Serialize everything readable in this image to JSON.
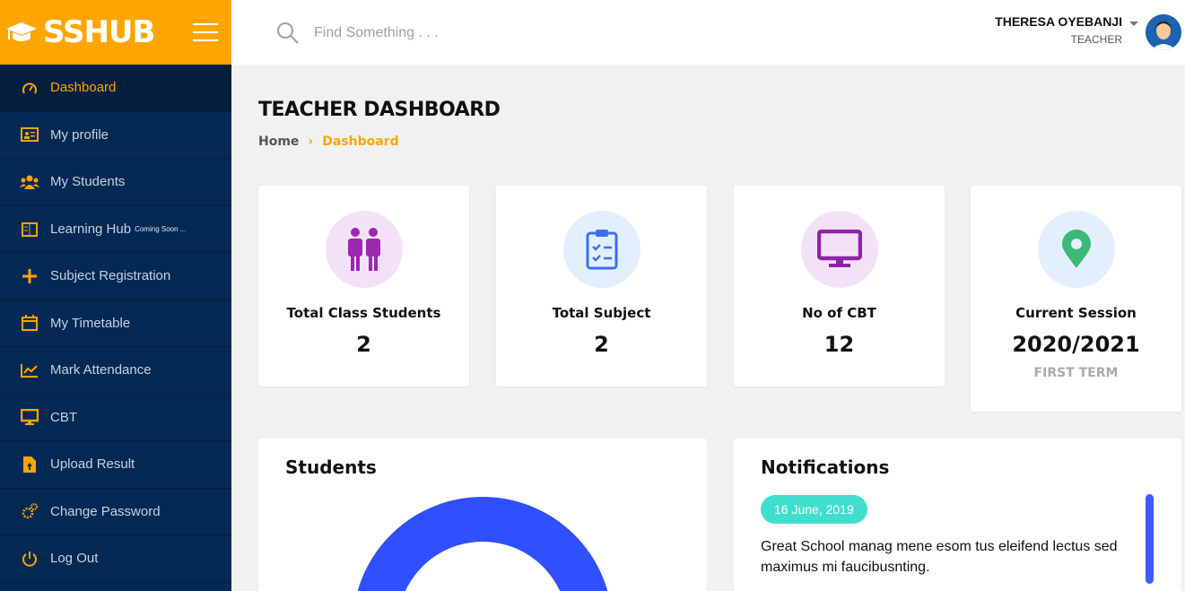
{
  "brand": {
    "name": "SSHUB"
  },
  "sidebar": {
    "items": [
      {
        "label": "Dashboard",
        "icon": "speedometer-icon",
        "active": true
      },
      {
        "label": "My profile",
        "icon": "id-card-icon"
      },
      {
        "label": "My Students",
        "icon": "users-icon"
      },
      {
        "label": "Learning Hub",
        "icon": "book-icon",
        "badge": "Coming Soon ..."
      },
      {
        "label": "Subject Registration",
        "icon": "plus-icon"
      },
      {
        "label": "My Timetable",
        "icon": "calendar-icon"
      },
      {
        "label": "Mark Attendance",
        "icon": "chart-line-icon"
      },
      {
        "label": "CBT",
        "icon": "monitor-icon"
      },
      {
        "label": "Upload Result",
        "icon": "file-upload-icon"
      },
      {
        "label": "Change Password",
        "icon": "gears-icon"
      },
      {
        "label": "Log Out",
        "icon": "power-icon"
      }
    ]
  },
  "header": {
    "search_placeholder": "Find Something . . .",
    "user_name": "THERESA OYEBANJI",
    "user_role": "TEACHER"
  },
  "page": {
    "title": "TEACHER DASHBOARD",
    "breadcrumb": {
      "home": "Home",
      "current": "Dashboard"
    }
  },
  "stats": [
    {
      "label": "Total Class Students",
      "value": "2",
      "icon": "students-icon",
      "bg": "#f3e2f7",
      "color": "#9c27b0"
    },
    {
      "label": "Total Subject",
      "value": "2",
      "icon": "clipboard-check-icon",
      "bg": "#e1efff",
      "color": "#3d6ef0"
    },
    {
      "label": "No of CBT",
      "value": "12",
      "icon": "monitor-icon",
      "bg": "#f3e2f7",
      "color": "#8e24aa"
    },
    {
      "label": "Current Session",
      "value": "2020/2021",
      "sub": "FIRST TERM",
      "icon": "map-pin-icon",
      "bg": "#e1efff",
      "color": "#3cb878"
    }
  ],
  "students_panel": {
    "title": "Students",
    "ring_color": "#304ffe"
  },
  "notifications": {
    "title": "Notifications",
    "items": [
      {
        "date": "16 June, 2019",
        "text": "Great School manag mene esom tus eleifend lectus sed maximus mi faucibusnting."
      }
    ]
  },
  "colors": {
    "accent": "#ffa500",
    "sidebar": "#042954"
  }
}
